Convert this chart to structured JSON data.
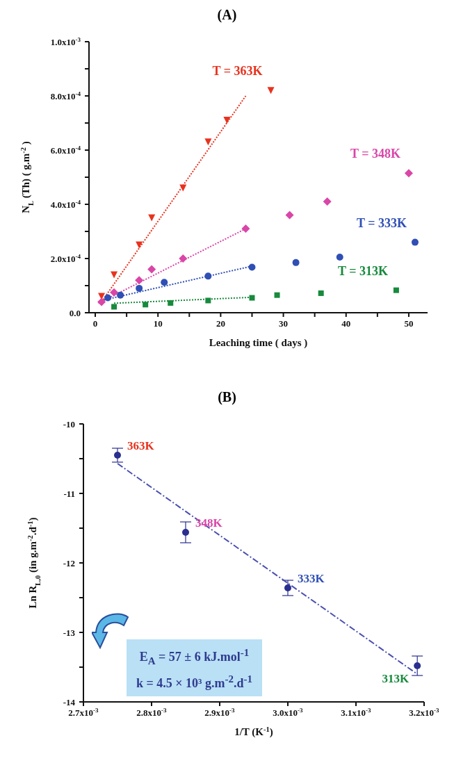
{
  "chart_data": [
    {
      "type": "scatter",
      "title": "(A)",
      "xlabel": "Leaching time ( days )",
      "ylabel": "N$_{L}$ (Th) ( g.m$^{-2}$ )",
      "xlim": [
        -1,
        53
      ],
      "xticks": [
        0,
        {
          "value": 5,
          "label": null
        },
        10,
        {
          "value": 15,
          "label": null
        },
        20,
        {
          "value": 25,
          "label": null
        },
        30,
        {
          "value": 35,
          "label": null
        },
        40,
        {
          "value": 45,
          "label": null
        },
        50
      ],
      "ylim": [
        0,
        0.001
      ],
      "yticks": [
        {
          "value": 0,
          "label": "0.0"
        },
        {
          "value": 0.0001,
          "label": null
        },
        {
          "value": 0.0002,
          "label": "2.0x10$^{-4}$"
        },
        {
          "value": 0.0003,
          "label": null
        },
        {
          "value": 0.0004,
          "label": "4.0x10$^{-4}$"
        },
        {
          "value": 0.0005,
          "label": null
        },
        {
          "value": 0.0006,
          "label": "6.0x10$^{-4}$"
        },
        {
          "value": 0.0007,
          "label": null
        },
        {
          "value": 0.0008,
          "label": "8.0x10$^{-4}$"
        },
        {
          "value": 0.0009,
          "label": null
        },
        {
          "value": 0.001,
          "label": "1.0x10$^{-3}$"
        }
      ],
      "series": [
        {
          "name": "T = 363K",
          "marker": "triangle",
          "color": "#e8321e",
          "x": [
            1,
            3,
            7,
            9,
            14,
            18,
            21,
            28
          ],
          "values": [
            6e-05,
            0.00014,
            0.00025,
            0.00035,
            0.00046,
            0.00063,
            0.00071,
            0.00082
          ]
        },
        {
          "name": "T = 348K",
          "marker": "diamond",
          "color": "#d946a8",
          "x": [
            1,
            3,
            7,
            9,
            14,
            24,
            31,
            37,
            50
          ],
          "values": [
            4e-05,
            7.5e-05,
            0.00012,
            0.00016,
            0.0002,
            0.00031,
            0.00036,
            0.00041,
            0.000515
          ]
        },
        {
          "name": "T = 333K",
          "marker": "circle",
          "color": "#2f4fb5",
          "x": [
            2,
            4,
            7,
            11,
            18,
            25,
            32,
            39,
            51
          ],
          "values": [
            5.5e-05,
            6.5e-05,
            9e-05,
            0.000112,
            0.000135,
            0.000168,
            0.000185,
            0.000205,
            0.00026
          ]
        },
        {
          "name": "T = 313K",
          "marker": "square",
          "color": "#178a3c",
          "x": [
            3,
            8,
            12,
            18,
            25,
            29,
            36,
            48
          ],
          "values": [
            2.2e-05,
            3e-05,
            3.6e-05,
            4.5e-05,
            5.5e-05,
            6.5e-05,
            7.2e-05,
            8.3e-05
          ]
        },
        {
          "type": "line",
          "line_style": "dotted",
          "color": "#e8321e",
          "x": [
            1,
            24
          ],
          "values": [
            4e-05,
            0.0008
          ]
        },
        {
          "type": "line",
          "line_style": "dotted",
          "color": "#d946a8",
          "x": [
            0.5,
            24
          ],
          "values": [
            3.5e-05,
            0.00031
          ]
        },
        {
          "type": "line",
          "line_style": "dotted",
          "color": "#2f4fb5",
          "x": [
            1,
            25
          ],
          "values": [
            4.5e-05,
            0.000172
          ]
        },
        {
          "type": "line",
          "line_style": "dotted",
          "color": "#178a3c",
          "x": [
            3,
            25
          ],
          "values": [
            3.5e-05,
            5.7e-05
          ]
        }
      ]
    },
    {
      "type": "scatter",
      "title": "(B)",
      "xlabel": "1/T (K$^{-1}$)",
      "ylabel": "Ln R$_{L,0}$ (in g.m$^{-2}$.d$^{-1}$)",
      "xlim": [
        0.0027,
        0.0032
      ],
      "xticks": [
        {
          "value": 0.0027,
          "label": "2.7x10$^{-3}$"
        },
        {
          "value": 0.0028,
          "label": "2.8x10$^{-3}$"
        },
        {
          "value": 0.0029,
          "label": "2.9x10$^{-3}$"
        },
        {
          "value": 0.003,
          "label": "3.0x10$^{-3}$"
        },
        {
          "value": 0.0031,
          "label": "3.1x10$^{-3}$"
        },
        {
          "value": 0.0032,
          "label": "3.2x10$^{-3}$"
        }
      ],
      "ylim": [
        -14,
        -10
      ],
      "yticks": [
        -14,
        {
          "value": -13.5,
          "label": null
        },
        -13,
        {
          "value": -12.5,
          "label": null
        },
        -12,
        {
          "value": -11.5,
          "label": null
        },
        -11,
        {
          "value": -10.5,
          "label": null
        },
        -10
      ],
      "series": [
        {
          "marker": "circle",
          "color": "#2a2f8f",
          "x": [
            0.00275,
            0.00285,
            0.003,
            0.00319
          ],
          "values": [
            -10.45,
            -11.56,
            -12.36,
            -13.48
          ],
          "errors": [
            0.1,
            0.15,
            0.11,
            0.14
          ]
        },
        {
          "type": "line",
          "line_style": "dashed",
          "color": "#4a4fb0",
          "x": [
            0.00275,
            0.00319
          ],
          "values": [
            -10.57,
            -13.6
          ]
        }
      ],
      "annotations": [
        {
          "text": "363K",
          "x": 0.00275,
          "y": -10.45
        },
        {
          "text": "348K",
          "x": 0.00285,
          "y": -11.56
        },
        {
          "text": "333K",
          "x": 0.003,
          "y": -12.36
        },
        {
          "text": "313K",
          "x": 0.00319,
          "y": -13.48
        },
        "E$_{A}$ = 57 ± 6 kJ.mol$^{-1}$",
        "k = 4.5 × 10³ g.m$^{-2}$.d$^{-1}$"
      ]
    }
  ]
}
